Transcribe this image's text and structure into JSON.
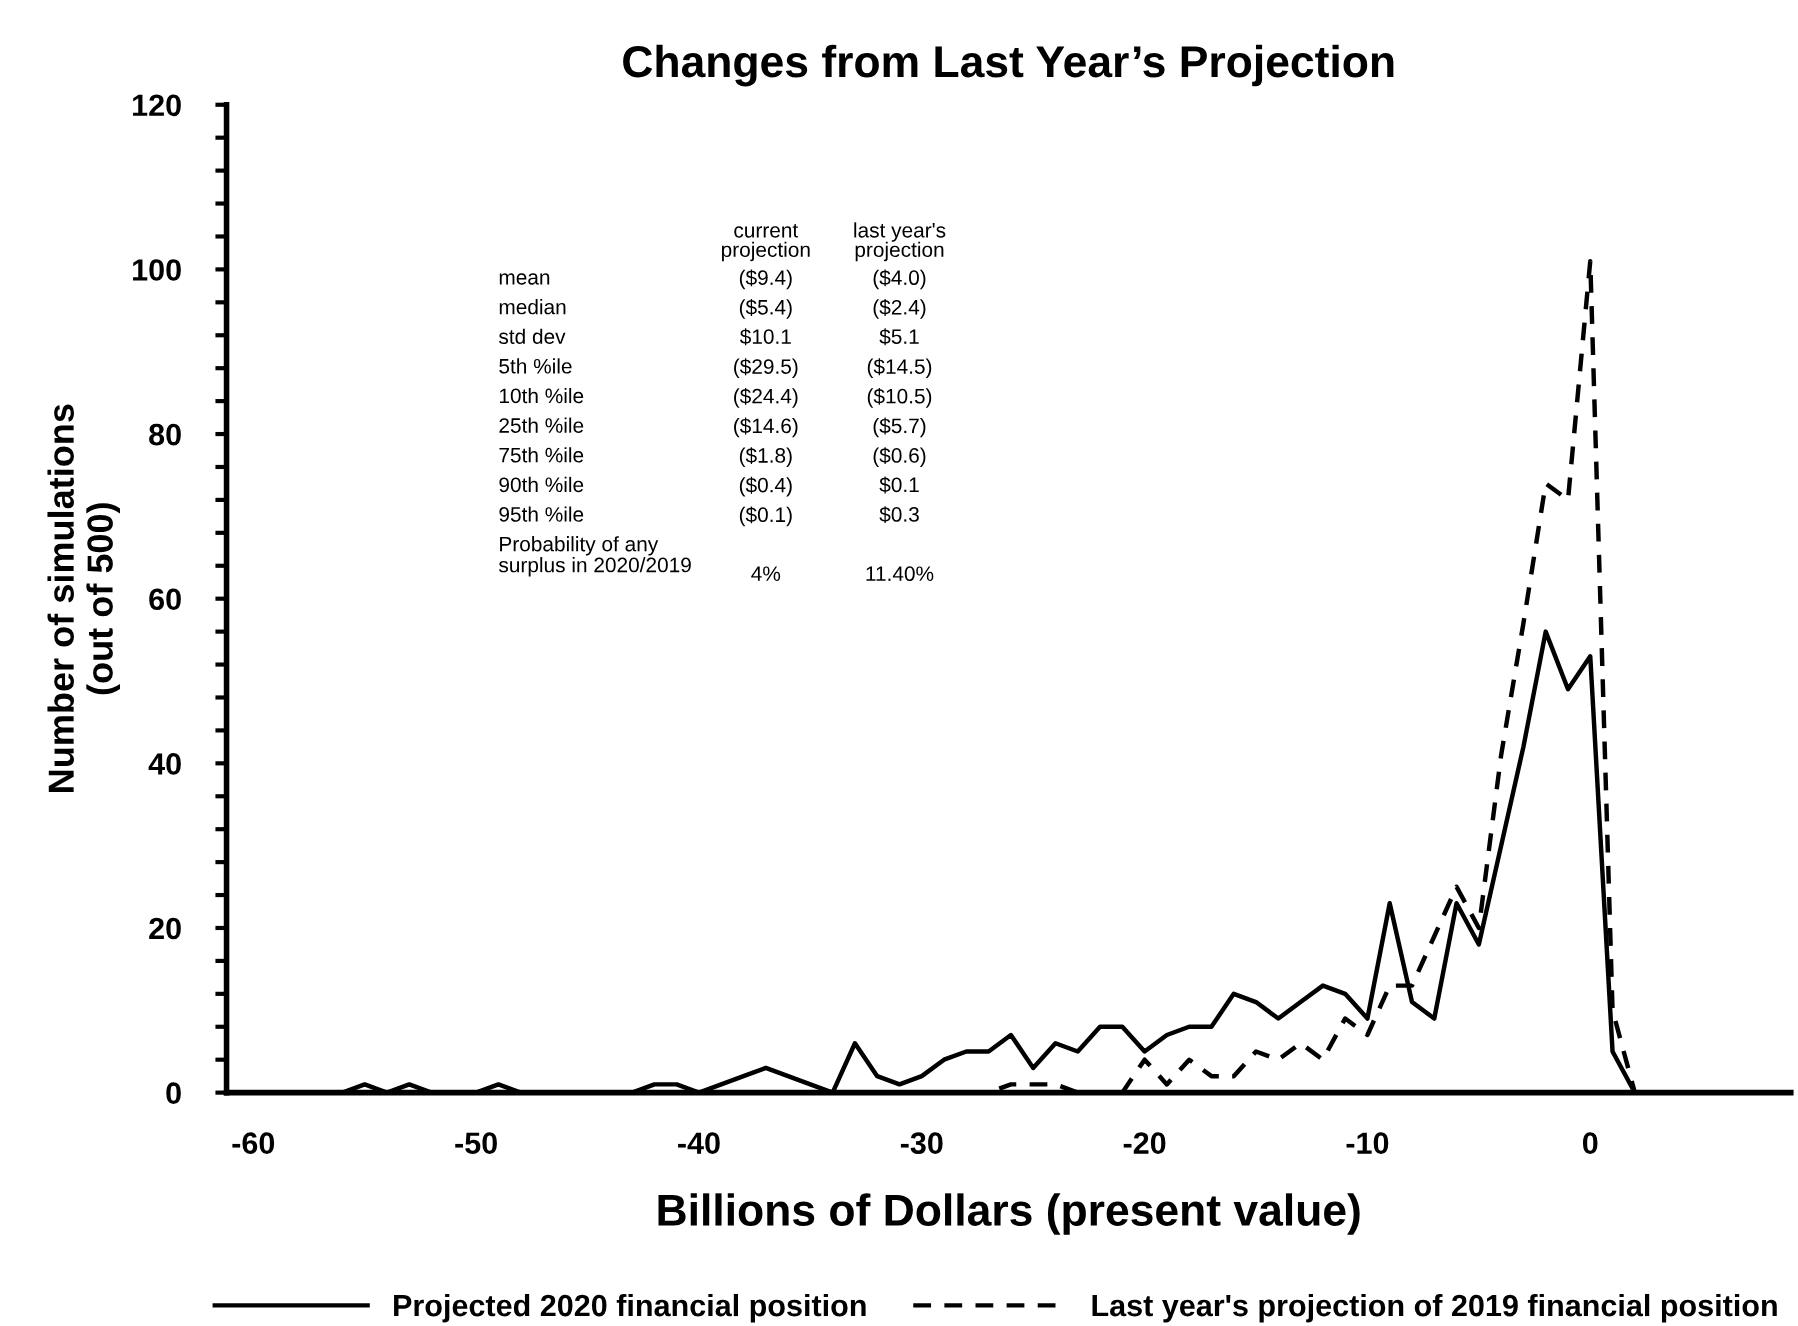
{
  "chart_data": {
    "type": "line",
    "title": "Changes from Last Year’s Projection",
    "xlabel": "Billions of Dollars (present value)",
    "ylabel": "Number of simulations\n(out of 500)",
    "x": [
      -60,
      -59,
      -58,
      -57,
      -56,
      -55,
      -54,
      -53,
      -52,
      -51,
      -50,
      -49,
      -48,
      -47,
      -46,
      -45,
      -44,
      -43,
      -42,
      -41,
      -40,
      -39,
      -38,
      -37,
      -36,
      -35,
      -34,
      -33,
      -32,
      -31,
      -30,
      -29,
      -28,
      -27,
      -26,
      -25,
      -24,
      -23,
      -22,
      -21,
      -20,
      -19,
      -18,
      -17,
      -16,
      -15,
      -14,
      -13,
      -12,
      -11,
      -10,
      -9,
      -8,
      -7,
      -6,
      -5,
      -4,
      -3,
      -2,
      -1,
      0,
      1,
      2
    ],
    "series": [
      {
        "name": "Projected 2020 financial position",
        "color": "#000000",
        "line_style": "solid",
        "values": [
          0,
          0,
          0,
          0,
          0,
          1,
          0,
          1,
          0,
          0,
          0,
          1,
          0,
          0,
          0,
          0,
          0,
          0,
          1,
          1,
          0,
          1,
          2,
          3,
          2,
          1,
          0,
          6,
          2,
          1,
          2,
          4,
          5,
          5,
          7,
          3,
          6,
          5,
          8,
          8,
          5,
          7,
          8,
          8,
          12,
          11,
          9,
          11,
          13,
          12,
          9,
          23,
          11,
          9,
          23,
          18,
          30,
          42,
          56,
          49,
          53,
          5,
          0
        ]
      },
      {
        "name": "Last year's projection of 2019 financial position",
        "color": "#000000",
        "line_style": "dashed",
        "values": [
          0,
          0,
          0,
          0,
          0,
          0,
          0,
          0,
          0,
          0,
          0,
          0,
          0,
          0,
          0,
          0,
          0,
          0,
          0,
          0,
          0,
          0,
          0,
          0,
          0,
          0,
          0,
          0,
          0,
          0,
          0,
          0,
          0,
          0,
          1,
          1,
          1,
          0,
          0,
          0,
          4,
          1,
          4,
          2,
          2,
          5,
          4,
          6,
          4,
          9,
          7,
          13,
          13,
          19,
          25,
          20,
          41,
          57,
          74,
          72,
          101,
          10,
          0
        ]
      }
    ],
    "xlim": [
      -61.2,
      9
    ],
    "ylim": [
      0,
      120
    ],
    "xticks": [
      -60,
      -50,
      -40,
      -30,
      -20,
      -10,
      0
    ],
    "yticks": [
      0,
      {
        "value": 4,
        "label": null
      },
      {
        "value": 8,
        "label": null
      },
      {
        "value": 12,
        "label": null
      },
      {
        "value": 16,
        "label": null
      },
      20,
      {
        "value": 24,
        "label": null
      },
      {
        "value": 28,
        "label": null
      },
      {
        "value": 32,
        "label": null
      },
      {
        "value": 36,
        "label": null
      },
      40,
      {
        "value": 44,
        "label": null
      },
      {
        "value": 48,
        "label": null
      },
      {
        "value": 52,
        "label": null
      },
      {
        "value": 56,
        "label": null
      },
      60,
      {
        "value": 64,
        "label": null
      },
      {
        "value": 68,
        "label": null
      },
      {
        "value": 72,
        "label": null
      },
      {
        "value": 76,
        "label": null
      },
      80,
      {
        "value": 84,
        "label": null
      },
      {
        "value": 88,
        "label": null
      },
      {
        "value": 92,
        "label": null
      },
      {
        "value": 96,
        "label": null
      },
      100,
      {
        "value": 104,
        "label": null
      },
      {
        "value": 108,
        "label": null
      },
      {
        "value": 112,
        "label": null
      },
      {
        "value": 116,
        "label": null
      },
      120
    ],
    "grid": false,
    "legend": "bottom",
    "marker": "none",
    "annotations": [
      "current\nprojection",
      "last year's\nprojection",
      "mean",
      "($9.4)",
      "($4.0)",
      "median",
      "($5.4)",
      "($2.4)",
      "std dev",
      "$10.1",
      "$5.1",
      "5th %ile",
      "($29.5)",
      "($14.5)",
      "10th %ile",
      "($24.4)",
      "($10.5)",
      "25th %ile",
      "($14.6)",
      "($5.7)",
      "75th %ile",
      "($1.8)",
      "($0.6)",
      "90th %ile",
      "($0.4)",
      "$0.1",
      "95th %ile",
      "($0.1)",
      "$0.3",
      "Probability of any\nsurplus in 2020/2019",
      "4%",
      "11.40%"
    ]
  }
}
